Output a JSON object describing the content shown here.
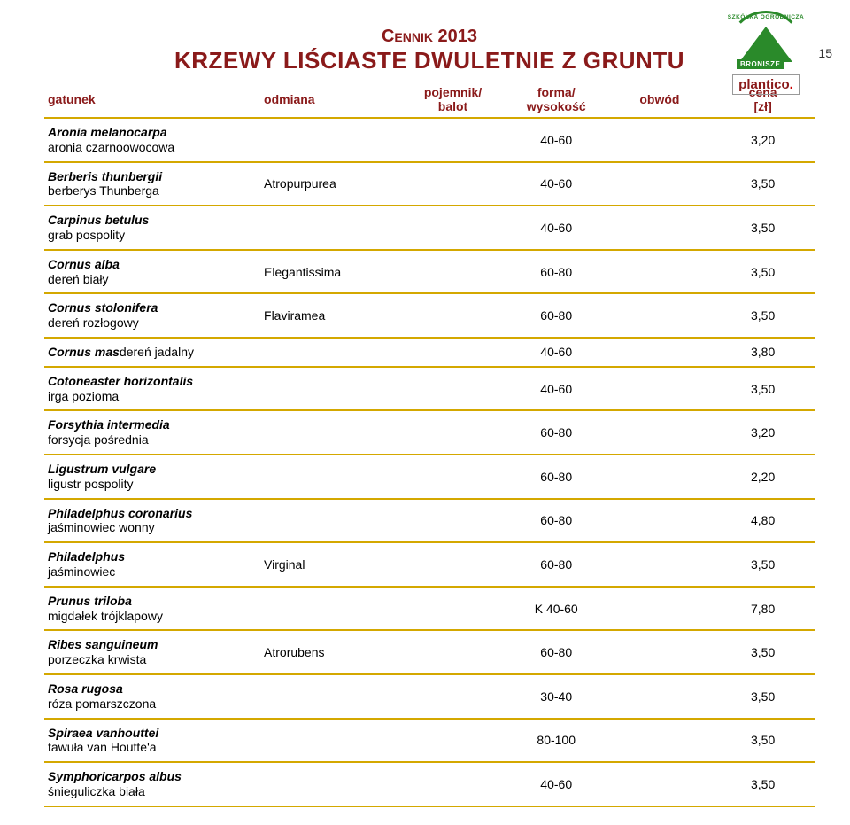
{
  "page_number": "15",
  "logo": {
    "arc_text": "SZKÓŁKA OGRODNICZA",
    "bronisze": "BRONISZE",
    "brand": "plantico",
    "dot": "."
  },
  "title": {
    "line1": "Cennik 2013",
    "line2": "KRZEWY LIŚCIASTE DWULETNIE Z GRUNTU"
  },
  "headers": {
    "gatunek": "gatunek",
    "odmiana": "odmiana",
    "pojemnik": "pojemnik/\nbalot",
    "forma": "forma/\nwysokość",
    "obwod": "obwód",
    "cena": "cena\n[zł]"
  },
  "rows": [
    {
      "lat": "Aronia melanocarpa",
      "pl": "aronia czarnoowocowa",
      "cult": "",
      "form": "40-60",
      "cena": "3,20"
    },
    {
      "lat": "Berberis thunbergii",
      "pl": "berberys Thunberga",
      "cult": "Atropurpurea",
      "form": "40-60",
      "cena": "3,50"
    },
    {
      "lat": "Carpinus betulus",
      "pl": "grab pospolity",
      "cult": "",
      "form": "40-60",
      "cena": "3,50"
    },
    {
      "lat": "Cornus alba",
      "pl": "dereń biały",
      "cult": "Elegantissima",
      "form": "60-80",
      "cena": "3,50"
    },
    {
      "lat": "Cornus stolonifera",
      "pl": "dereń rozłogowy",
      "cult": "Flaviramea",
      "form": "60-80",
      "cena": "3,50"
    },
    {
      "lat": "Cornus mas",
      "lat_rest": "dereń jadalny",
      "single": true,
      "cult": "",
      "form": "40-60",
      "cena": "3,80"
    },
    {
      "lat": "Cotoneaster horizontalis",
      "pl": "irga pozioma",
      "cult": "",
      "form": "40-60",
      "cena": "3,50"
    },
    {
      "lat": "Forsythia intermedia",
      "pl": "forsycja pośrednia",
      "cult": "",
      "form": "60-80",
      "cena": "3,20"
    },
    {
      "lat": "Ligustrum vulgare",
      "pl": "ligustr pospolity",
      "cult": "",
      "form": "60-80",
      "cena": "2,20"
    },
    {
      "lat": "Philadelphus coronarius",
      "pl": "jaśminowiec wonny",
      "cult": "",
      "form": "60-80",
      "cena": "4,80"
    },
    {
      "lat": "Philadelphus",
      "pl": "jaśminowiec",
      "cult": "Virginal",
      "form": "60-80",
      "cena": "3,50"
    },
    {
      "lat": "Prunus triloba",
      "pl": "migdałek trójklapowy",
      "cult": "",
      "form": "K 40-60",
      "cena": "7,80"
    },
    {
      "lat": "Ribes sanguineum",
      "pl": "porzeczka krwista",
      "cult": "Atrorubens",
      "form": "60-80",
      "cena": "3,50"
    },
    {
      "lat": "Rosa rugosa",
      "pl": "róza pomarszczona",
      "cult": "",
      "form": "30-40",
      "cena": "3,50"
    },
    {
      "lat": "Spiraea vanhouttei",
      "pl": "tawuła van Houtte'a",
      "cult": "",
      "form": "80-100",
      "cena": "3,50"
    },
    {
      "lat": "Symphoricarpos albus",
      "pl": "śnieguliczka biała",
      "cult": "",
      "form": "40-60",
      "cena": "3,50"
    }
  ]
}
